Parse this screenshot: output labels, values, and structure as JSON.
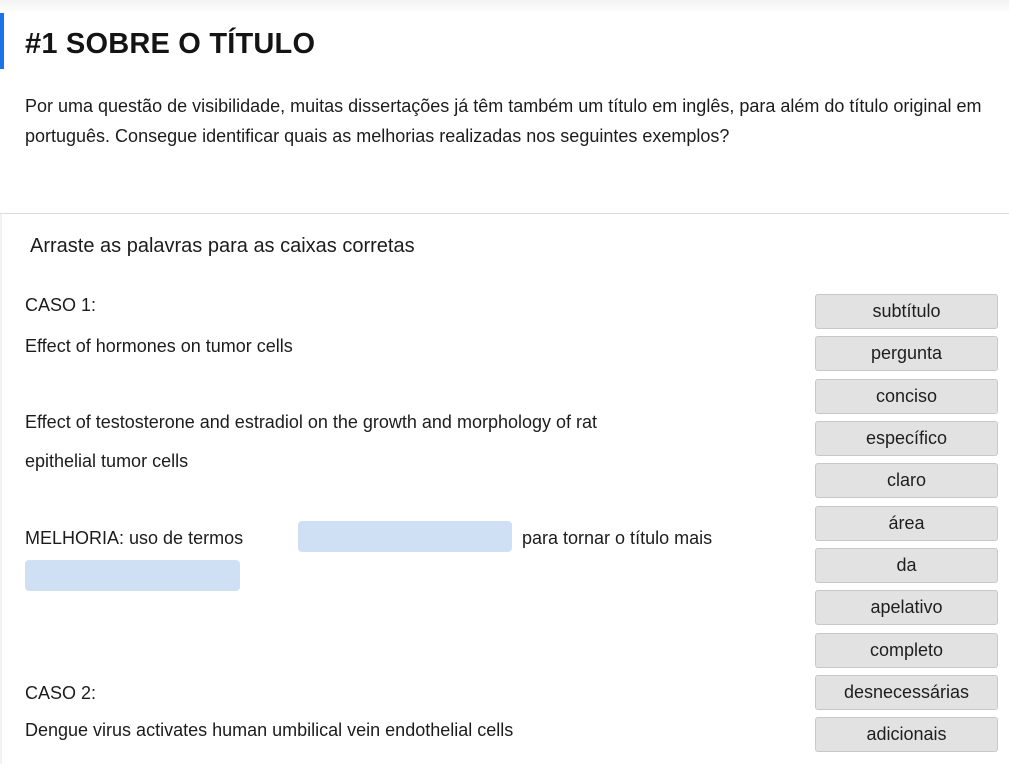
{
  "header": {
    "title": "#1 SOBRE O TÍTULO",
    "intro": "Por uma questão de visibilidade, muitas dissertações já têm também um título em inglês, para além do título original em português. Consegue identificar quais as melhorias realizadas nos seguintes exemplos?"
  },
  "activity": {
    "instructions": "Arraste as palavras para as caixas corretas",
    "case1": {
      "label": "CASO 1:",
      "original_title": "Effect of hormones on tumor cells",
      "improved_title_line1": "Effect of testosterone and estradiol on the growth and morphology of rat",
      "improved_title_line2": "epithelial tumor cells",
      "improvement_prefix": "MELHORIA: uso de termos",
      "improvement_middle": "para tornar o título mais"
    },
    "case2": {
      "label": "CASO 2:",
      "original_title": "Dengue virus activates human umbilical vein endothelial cells"
    }
  },
  "word_bank": [
    "subtítulo",
    "pergunta",
    "conciso",
    "específico",
    "claro",
    "área",
    "da",
    "apelativo",
    "completo",
    "desnecessárias",
    "adicionais"
  ],
  "colors": {
    "accent": "#1a73e8",
    "drop_zone": "#cfe0f4",
    "chip_bg": "#e2e2e2"
  }
}
